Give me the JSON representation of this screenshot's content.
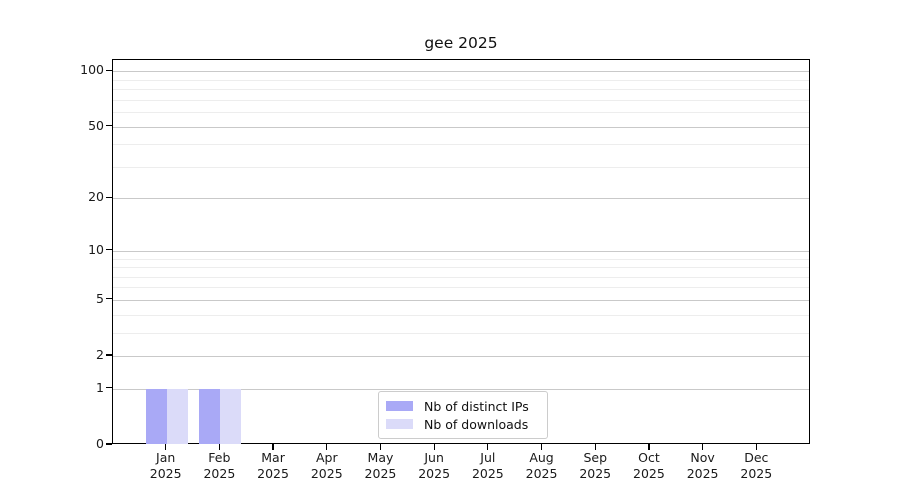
{
  "title": "gee 2025",
  "chart_data": {
    "type": "bar",
    "title": "gee 2025",
    "scale": "log1p",
    "grid": "horizontal, major and minor gridlines",
    "legend_position": "lower center",
    "categories": [
      "Jan",
      "Feb",
      "Mar",
      "Apr",
      "May",
      "Jun",
      "Jul",
      "Aug",
      "Sep",
      "Oct",
      "Nov",
      "Dec"
    ],
    "year": "2025",
    "series": [
      {
        "name": "Nb of distinct IPs",
        "color": "#a9a9f6",
        "values": [
          1,
          1,
          0,
          0,
          0,
          0,
          0,
          0,
          0,
          0,
          0,
          0
        ]
      },
      {
        "name": "Nb of downloads",
        "color": "#dbdbf9",
        "values": [
          1,
          1,
          0,
          0,
          0,
          0,
          0,
          0,
          0,
          0,
          0,
          0
        ]
      }
    ],
    "y_ticks": [
      0,
      1,
      2,
      5,
      10,
      20,
      50,
      100
    ],
    "y_minor_gridlines": [
      3,
      4,
      6,
      7,
      8,
      9,
      30,
      40,
      60,
      70,
      80,
      90
    ],
    "ylim": [
      0,
      115
    ],
    "xlabel": "",
    "ylabel": ""
  },
  "colors": {
    "axis": "#000000",
    "major_grid": "#c9c9c9",
    "minor_grid": "#ededed",
    "text": "#1a1a1a",
    "background": "#ffffff"
  }
}
